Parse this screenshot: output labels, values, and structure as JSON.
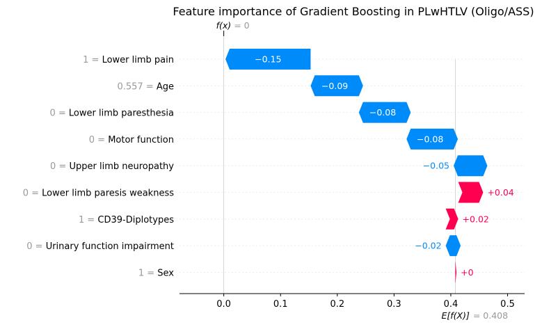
{
  "chart_data": {
    "type": "waterfall",
    "title": "Feature importance of Gradient Boosting in PLwHTLV (Oligo/ASS)",
    "fx_prefix": "f(x)",
    "fx_suffix": "= 0",
    "fx_value": 0,
    "base_prefix": "E[f(X)]",
    "base_suffix": "= 0.408",
    "base_value": 0.408,
    "xlim": [
      -0.078,
      0.53
    ],
    "x_ticks": [
      0.0,
      0.1,
      0.2,
      0.3,
      0.4,
      0.5
    ],
    "x_tick_labels": [
      "0.0",
      "0.1",
      "0.2",
      "0.3",
      "0.4",
      "0.5"
    ],
    "features": [
      {
        "value": "1 =",
        "name": "Lower limb pain",
        "contribution": -0.15,
        "label": "−0.15"
      },
      {
        "value": "0.557 =",
        "name": "Age",
        "contribution": -0.085,
        "label": "−0.09"
      },
      {
        "value": "0 =",
        "name": "Lower limb paresthesia",
        "contribution": -0.084,
        "label": "−0.08"
      },
      {
        "value": "0 =",
        "name": "Motor function",
        "contribution": -0.083,
        "label": "−0.08"
      },
      {
        "value": "0 =",
        "name": "Upper limb neuropathy",
        "contribution": -0.052,
        "label": "−0.05"
      },
      {
        "value": "0 =",
        "name": "Lower limb paresis weakness",
        "contribution": 0.044,
        "label": "+0.04"
      },
      {
        "value": "1 =",
        "name": "CD39-Diplotypes",
        "contribution": 0.022,
        "label": "+0.02"
      },
      {
        "value": "0 =",
        "name": "Urinary function impairment",
        "contribution": -0.019,
        "label": "−0.02"
      },
      {
        "value": "1 =",
        "name": "Sex",
        "contribution": 0.002,
        "label": "+0"
      }
    ],
    "colors": {
      "negative": "#008bfb",
      "positive": "#ff0051",
      "axis": "#000000",
      "grid": "#cccccc",
      "muted": "#999999"
    }
  }
}
